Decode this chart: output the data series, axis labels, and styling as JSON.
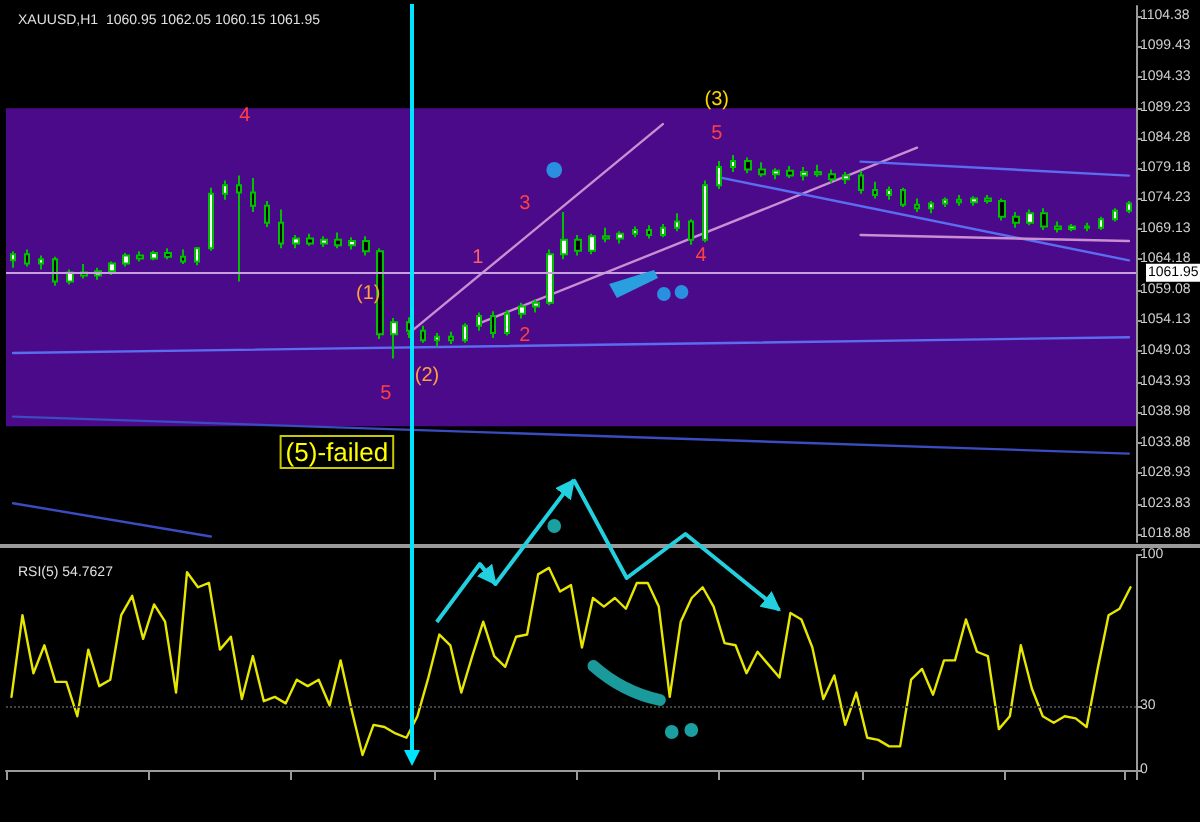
{
  "chart_data": [
    {
      "type": "candlestick",
      "title": "XAUUSD,H1  1060.95 1062.05 1060.15 1061.95",
      "tick_labels": "y",
      "ylim": [
        1017.5,
        1106
      ],
      "yticks": [
        1018.88,
        1023.83,
        1028.93,
        1033.88,
        1038.98,
        1043.93,
        1049.03,
        1054.13,
        1059.08,
        1064.18,
        1069.13,
        1074.23,
        1079.18,
        1084.28,
        1089.23,
        1094.33,
        1099.43,
        1104.38
      ],
      "categories": [
        null,
        null,
        null,
        null,
        null,
        null,
        null,
        null,
        null,
        null,
        null,
        null,
        null,
        null,
        null,
        null,
        null,
        null,
        null,
        null,
        null,
        null,
        null,
        null,
        null,
        null,
        null,
        null,
        null,
        null,
        null,
        null,
        null,
        null,
        null,
        null,
        null,
        null,
        null,
        null,
        null,
        null,
        null,
        null,
        null,
        null,
        null,
        null,
        null,
        null,
        null,
        null,
        null,
        null,
        null,
        null,
        null,
        null,
        null,
        null,
        null,
        null,
        null,
        null,
        null,
        null,
        null,
        null,
        null,
        null,
        null,
        null,
        null,
        null,
        null,
        null,
        null,
        null,
        null,
        null
      ],
      "ohlc": [
        [
          1064.0,
          1065.5,
          1062.8,
          1065.0
        ],
        [
          1065.0,
          1065.8,
          1063.0,
          1063.5
        ],
        [
          1063.5,
          1064.8,
          1062.5,
          1064.2
        ],
        [
          1064.2,
          1064.6,
          1059.8,
          1060.5
        ],
        [
          1060.5,
          1062.5,
          1060.0,
          1062.0
        ],
        [
          1062.0,
          1063.4,
          1061.0,
          1061.5
        ],
        [
          1061.5,
          1062.8,
          1060.8,
          1062.2
        ],
        [
          1062.2,
          1063.8,
          1061.6,
          1063.5
        ],
        [
          1063.5,
          1065.2,
          1063.0,
          1064.8
        ],
        [
          1064.8,
          1065.5,
          1063.8,
          1064.3
        ],
        [
          1064.3,
          1065.6,
          1064.0,
          1065.2
        ],
        [
          1065.2,
          1066.0,
          1064.2,
          1064.6
        ],
        [
          1064.6,
          1065.8,
          1063.4,
          1063.8
        ],
        [
          1063.8,
          1066.2,
          1063.2,
          1066.0
        ],
        [
          1066.0,
          1076.0,
          1065.6,
          1075.0
        ],
        [
          1075.0,
          1077.2,
          1074.0,
          1076.4
        ],
        [
          1076.4,
          1078.0,
          1060.5,
          1075.2
        ],
        [
          1075.2,
          1077.6,
          1072.0,
          1073.0
        ],
        [
          1073.0,
          1073.8,
          1069.5,
          1070.2
        ],
        [
          1070.2,
          1072.4,
          1066.0,
          1066.8
        ],
        [
          1066.8,
          1068.2,
          1066.0,
          1067.6
        ],
        [
          1067.6,
          1068.4,
          1066.4,
          1066.8
        ],
        [
          1066.8,
          1068.0,
          1066.2,
          1067.4
        ],
        [
          1067.4,
          1068.6,
          1066.0,
          1066.5
        ],
        [
          1066.5,
          1067.8,
          1065.8,
          1067.2
        ],
        [
          1067.2,
          1068.0,
          1064.8,
          1065.5
        ],
        [
          1065.5,
          1066.0,
          1051.0,
          1051.8
        ],
        [
          1051.8,
          1054.5,
          1047.8,
          1053.8
        ],
        [
          1053.8,
          1054.6,
          1051.2,
          1052.4
        ],
        [
          1052.4,
          1053.2,
          1050.4,
          1050.8
        ],
        [
          1050.8,
          1052.0,
          1049.8,
          1051.4
        ],
        [
          1051.4,
          1052.2,
          1050.2,
          1050.8
        ],
        [
          1050.8,
          1053.6,
          1050.4,
          1053.2
        ],
        [
          1053.2,
          1055.4,
          1052.4,
          1054.8
        ],
        [
          1054.8,
          1055.6,
          1051.2,
          1052.0
        ],
        [
          1052.0,
          1055.8,
          1051.6,
          1055.2
        ],
        [
          1055.2,
          1057.0,
          1054.4,
          1056.4
        ],
        [
          1056.4,
          1057.6,
          1055.4,
          1057.0
        ],
        [
          1057.0,
          1065.8,
          1056.6,
          1065.0
        ],
        [
          1065.0,
          1072.0,
          1064.2,
          1067.4
        ],
        [
          1067.4,
          1068.2,
          1064.8,
          1065.6
        ],
        [
          1065.6,
          1068.4,
          1065.0,
          1068.0
        ],
        [
          1068.0,
          1069.4,
          1067.0,
          1067.6
        ],
        [
          1067.6,
          1068.8,
          1066.8,
          1068.4
        ],
        [
          1068.4,
          1069.6,
          1067.8,
          1069.0
        ],
        [
          1069.0,
          1069.8,
          1067.6,
          1068.2
        ],
        [
          1068.2,
          1070.0,
          1067.8,
          1069.4
        ],
        [
          1069.4,
          1071.8,
          1068.8,
          1070.4
        ],
        [
          1070.4,
          1070.8,
          1066.6,
          1067.4
        ],
        [
          1067.4,
          1077.2,
          1067.0,
          1076.4
        ],
        [
          1076.4,
          1080.4,
          1075.8,
          1079.4
        ],
        [
          1079.4,
          1081.4,
          1078.6,
          1080.4
        ],
        [
          1080.4,
          1081.0,
          1078.4,
          1079.0
        ],
        [
          1079.0,
          1080.2,
          1077.8,
          1078.2
        ],
        [
          1078.2,
          1079.2,
          1077.4,
          1078.8
        ],
        [
          1078.8,
          1079.6,
          1077.6,
          1078.0
        ],
        [
          1078.0,
          1079.4,
          1077.2,
          1078.6
        ],
        [
          1078.6,
          1079.8,
          1077.8,
          1078.2
        ],
        [
          1078.2,
          1079.0,
          1076.8,
          1077.4
        ],
        [
          1077.4,
          1078.6,
          1076.6,
          1078.0
        ],
        [
          1078.0,
          1078.8,
          1075.0,
          1075.6
        ],
        [
          1075.6,
          1077.0,
          1074.2,
          1074.8
        ],
        [
          1074.8,
          1076.2,
          1074.0,
          1075.6
        ],
        [
          1075.6,
          1076.0,
          1072.8,
          1073.2
        ],
        [
          1073.2,
          1074.2,
          1072.0,
          1072.6
        ],
        [
          1072.6,
          1073.8,
          1071.8,
          1073.4
        ],
        [
          1073.4,
          1074.4,
          1072.8,
          1074.0
        ],
        [
          1074.0,
          1074.8,
          1073.0,
          1073.6
        ],
        [
          1073.6,
          1074.6,
          1073.0,
          1074.2
        ],
        [
          1074.2,
          1074.8,
          1073.4,
          1073.8
        ],
        [
          1073.8,
          1074.2,
          1070.6,
          1071.2
        ],
        [
          1071.2,
          1072.0,
          1069.4,
          1070.2
        ],
        [
          1070.2,
          1072.4,
          1069.8,
          1071.8
        ],
        [
          1071.8,
          1072.6,
          1069.0,
          1069.6
        ],
        [
          1069.6,
          1070.4,
          1068.6,
          1069.2
        ],
        [
          1069.2,
          1070.0,
          1068.8,
          1069.6
        ],
        [
          1069.6,
          1070.2,
          1068.8,
          1069.4
        ],
        [
          1069.4,
          1071.2,
          1069.0,
          1070.8
        ],
        [
          1070.8,
          1072.6,
          1070.4,
          1072.2
        ],
        [
          1072.2,
          1073.8,
          1071.8,
          1073.4
        ]
      ],
      "series": [
        {
          "type": "line",
          "color": "#5a6cf0",
          "values": [
            1048.7,
            null,
            null,
            null,
            null,
            null,
            null,
            null,
            null,
            null,
            null,
            null,
            null,
            null,
            null,
            null,
            null,
            null,
            null,
            null,
            null,
            null,
            null,
            null,
            null,
            null,
            null,
            null,
            null,
            null,
            null,
            null,
            null,
            null,
            null,
            null,
            null,
            null,
            null,
            null,
            null,
            null,
            null,
            null,
            null,
            null,
            null,
            null,
            null,
            null,
            null,
            null,
            null,
            null,
            null,
            null,
            null,
            null,
            null,
            null,
            null,
            null,
            null,
            null,
            null,
            null,
            null,
            null,
            null,
            null,
            null,
            null,
            null,
            null,
            null,
            null,
            null,
            null,
            null,
            1051.3
          ]
        },
        {
          "type": "line",
          "color": "#3a4cc0",
          "values": [
            1038.2,
            null,
            null,
            null,
            null,
            null,
            null,
            null,
            null,
            null,
            null,
            null,
            null,
            null,
            null,
            null,
            null,
            null,
            null,
            null,
            null,
            null,
            null,
            null,
            null,
            null,
            null,
            null,
            null,
            null,
            null,
            null,
            null,
            null,
            null,
            null,
            null,
            null,
            null,
            null,
            null,
            null,
            null,
            null,
            null,
            null,
            null,
            null,
            null,
            null,
            null,
            null,
            null,
            null,
            null,
            null,
            null,
            null,
            null,
            null,
            null,
            null,
            null,
            null,
            null,
            null,
            null,
            null,
            null,
            null,
            null,
            null,
            null,
            null,
            null,
            null,
            null,
            null,
            null,
            1032.1
          ]
        },
        {
          "type": "line",
          "color": "#3a4cc0",
          "values": [
            1023.9,
            null,
            null,
            null,
            null,
            null,
            null,
            null,
            null,
            null,
            null,
            null,
            null,
            null,
            1018.4,
            null,
            null,
            null,
            null,
            null,
            null,
            null,
            null,
            null,
            null,
            null,
            null,
            null,
            null,
            null,
            null,
            null,
            null,
            null,
            null,
            null,
            null,
            null,
            null,
            null,
            null,
            null,
            null,
            null,
            null,
            null,
            null,
            null,
            null,
            null,
            null,
            null,
            null,
            null,
            null,
            null,
            null,
            null,
            null,
            null,
            null,
            null,
            null,
            null,
            null,
            null,
            null,
            null,
            null,
            null,
            null,
            null,
            null,
            null,
            null,
            null,
            null,
            null,
            null,
            null
          ]
        },
        {
          "type": "line",
          "color": "#c98fd0",
          "values": [
            null,
            null,
            null,
            null,
            null,
            null,
            null,
            null,
            null,
            null,
            null,
            null,
            null,
            null,
            null,
            null,
            null,
            null,
            null,
            null,
            null,
            null,
            null,
            null,
            null,
            null,
            null,
            null,
            1051.9,
            null,
            null,
            null,
            null,
            null,
            null,
            null,
            null,
            null,
            null,
            null,
            null,
            null,
            null,
            null,
            null,
            null,
            1086.5,
            null,
            null,
            null,
            null,
            null,
            null,
            null,
            null,
            null,
            null,
            null,
            null,
            null,
            null,
            null,
            null,
            null,
            null,
            null,
            null,
            null,
            null,
            null,
            null,
            null,
            null,
            null,
            null,
            null,
            null,
            null,
            null,
            null
          ]
        },
        {
          "type": "line",
          "color": "#c98fd0",
          "values": [
            null,
            null,
            null,
            null,
            null,
            null,
            null,
            null,
            null,
            null,
            null,
            null,
            null,
            null,
            null,
            null,
            null,
            null,
            null,
            null,
            null,
            null,
            null,
            null,
            null,
            null,
            null,
            null,
            null,
            null,
            null,
            null,
            null,
            1053.6,
            null,
            null,
            null,
            null,
            null,
            null,
            null,
            null,
            null,
            null,
            null,
            null,
            null,
            null,
            null,
            null,
            null,
            null,
            null,
            null,
            null,
            null,
            null,
            null,
            null,
            null,
            null,
            null,
            null,
            null,
            1082.6,
            null,
            null,
            null,
            null,
            null,
            null,
            null,
            null,
            null,
            null,
            null,
            null,
            null,
            null,
            null
          ]
        },
        {
          "type": "line",
          "color": "#5a6cf0",
          "values": [
            null,
            null,
            null,
            null,
            null,
            null,
            null,
            null,
            null,
            null,
            null,
            null,
            null,
            null,
            null,
            null,
            null,
            null,
            null,
            null,
            null,
            null,
            null,
            null,
            null,
            null,
            null,
            null,
            null,
            null,
            null,
            null,
            null,
            null,
            null,
            null,
            null,
            null,
            null,
            null,
            null,
            null,
            null,
            null,
            null,
            null,
            null,
            null,
            null,
            null,
            null,
            null,
            null,
            null,
            null,
            null,
            null,
            null,
            null,
            null,
            1080.3,
            null,
            null,
            null,
            null,
            null,
            null,
            null,
            null,
            null,
            null,
            null,
            null,
            null,
            null,
            null,
            null,
            null,
            null,
            1078.0
          ]
        },
        {
          "type": "line",
          "color": "#5a6cf0",
          "values": [
            null,
            null,
            null,
            null,
            null,
            null,
            null,
            null,
            null,
            null,
            null,
            null,
            null,
            null,
            null,
            null,
            null,
            null,
            null,
            null,
            null,
            null,
            null,
            null,
            null,
            null,
            null,
            null,
            null,
            null,
            null,
            null,
            null,
            null,
            null,
            null,
            null,
            null,
            null,
            null,
            null,
            null,
            null,
            null,
            null,
            null,
            null,
            null,
            null,
            null,
            1077.7,
            null,
            null,
            null,
            null,
            null,
            null,
            null,
            null,
            null,
            null,
            null,
            null,
            null,
            null,
            null,
            null,
            null,
            null,
            null,
            null,
            null,
            null,
            null,
            null,
            null,
            null,
            null,
            null,
            1064.0
          ]
        },
        {
          "type": "line",
          "color": "#c98fd0",
          "values": [
            null,
            null,
            null,
            null,
            null,
            null,
            null,
            null,
            null,
            null,
            null,
            null,
            null,
            null,
            null,
            null,
            null,
            null,
            null,
            null,
            null,
            null,
            null,
            null,
            null,
            null,
            null,
            null,
            null,
            null,
            null,
            null,
            null,
            null,
            null,
            null,
            null,
            null,
            null,
            null,
            null,
            null,
            null,
            null,
            null,
            null,
            null,
            null,
            null,
            null,
            null,
            null,
            null,
            null,
            null,
            null,
            null,
            null,
            null,
            null,
            1068.2,
            null,
            null,
            null,
            null,
            null,
            null,
            null,
            null,
            null,
            null,
            null,
            null,
            null,
            null,
            null,
            null,
            null,
            null,
            1067.2
          ]
        }
      ],
      "bands": [
        {
          "axis": "y",
          "from": 1036.6,
          "to": 1089.1,
          "color": "#4b0a8a"
        }
      ],
      "ref_lines": [
        {
          "axis": "y",
          "value": 1061.95,
          "label": "1061.95",
          "color": "#c8a0e0"
        }
      ],
      "annotations": [
        "4",
        "(1)",
        "5",
        "(2)",
        "1",
        "2",
        "3",
        "(3)",
        "5",
        "4",
        "(5)-failed"
      ]
    },
    {
      "type": "line",
      "title": "RSI(5) 54.7627",
      "tick_labels": "y",
      "line_style": "solid",
      "color": "#e6e600",
      "ylim": [
        0,
        100
      ],
      "yticks": [
        0,
        30,
        100
      ],
      "categories": [
        null,
        null,
        null,
        null,
        null,
        null,
        null,
        null,
        null,
        null,
        null,
        null,
        null,
        null,
        null,
        null,
        null,
        null,
        null,
        null,
        null,
        null,
        null,
        null,
        null,
        null,
        null,
        null,
        null,
        null,
        null,
        null,
        null,
        null,
        null,
        null,
        null,
        null,
        null,
        null,
        null,
        null,
        null,
        null,
        null,
        null,
        null,
        null,
        null,
        null,
        null,
        null,
        null,
        null,
        null,
        null,
        null,
        null,
        null,
        null,
        null,
        null,
        null,
        null,
        null,
        null,
        null,
        null,
        null,
        null,
        null,
        null,
        null,
        null,
        null,
        null,
        null,
        null,
        null,
        null,
        null,
        null,
        null,
        null,
        null,
        null,
        null,
        null,
        null,
        null,
        null,
        null,
        null,
        null,
        null,
        null,
        null,
        null,
        null,
        null,
        null,
        null,
        null
      ],
      "values": [
        34,
        72,
        45,
        58,
        41,
        41,
        25,
        56,
        39,
        42,
        72,
        81,
        61,
        77,
        69,
        36,
        92,
        85,
        87,
        56,
        62,
        33,
        53,
        32,
        34,
        31,
        42,
        39,
        42,
        30,
        51,
        28,
        7,
        21,
        20,
        17,
        15,
        25,
        43,
        63,
        58,
        36,
        53,
        69,
        53,
        48,
        62,
        63,
        91,
        94,
        83,
        86,
        57,
        80,
        76,
        80,
        75,
        87,
        87,
        76,
        34,
        69,
        80,
        85,
        76,
        59,
        58,
        45,
        55,
        49,
        43,
        73,
        70,
        57,
        33,
        44,
        21,
        36,
        15,
        14,
        11,
        11,
        42,
        47,
        35,
        51,
        51,
        70,
        55,
        53,
        19,
        25,
        58,
        38,
        25,
        22,
        25,
        24,
        20,
        47,
        72,
        75,
        85
      ],
      "ref_lines": [
        {
          "axis": "y",
          "value": 30,
          "color": "#444444",
          "line_style": "dotted"
        }
      ]
    }
  ]
}
